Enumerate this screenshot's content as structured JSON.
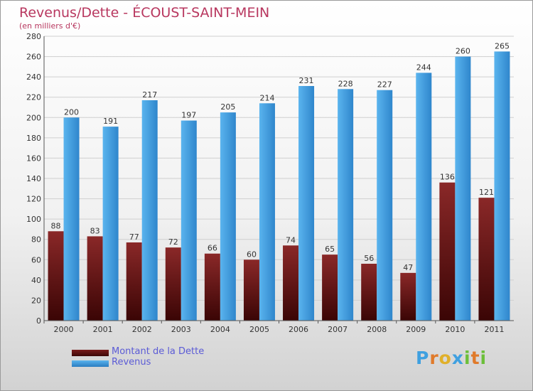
{
  "title": "Revenus/Dette - ÉCOUST-SAINT-MEIN",
  "subtitle": "(en milliers d'€)",
  "logo": {
    "letters": [
      "P",
      "r",
      "o",
      "x",
      "i",
      "t",
      "i"
    ],
    "colors": [
      "#3fa0e0",
      "#e07a2a",
      "#e0b02a",
      "#3fa0e0",
      "#6cbf3a",
      "#e07a2a",
      "#6cbf3a"
    ]
  },
  "chart_data": {
    "type": "bar",
    "categories": [
      "2000",
      "2001",
      "2002",
      "2003",
      "2004",
      "2005",
      "2006",
      "2007",
      "2008",
      "2009",
      "2010",
      "2011"
    ],
    "series": [
      {
        "name": "Montant de la Dette",
        "color": "#7a1c1c",
        "values": [
          88,
          83,
          77,
          72,
          66,
          60,
          74,
          65,
          56,
          47,
          136,
          121
        ]
      },
      {
        "name": "Revenus",
        "color": "#4da6e8",
        "values": [
          200,
          191,
          217,
          197,
          205,
          214,
          231,
          228,
          227,
          244,
          260,
          265
        ]
      }
    ],
    "ylim": [
      0,
      280
    ],
    "yticks": [
      0,
      20,
      40,
      60,
      80,
      100,
      120,
      140,
      160,
      180,
      200,
      220,
      240,
      260,
      280
    ],
    "grid": true,
    "legend": "bottom-left"
  }
}
